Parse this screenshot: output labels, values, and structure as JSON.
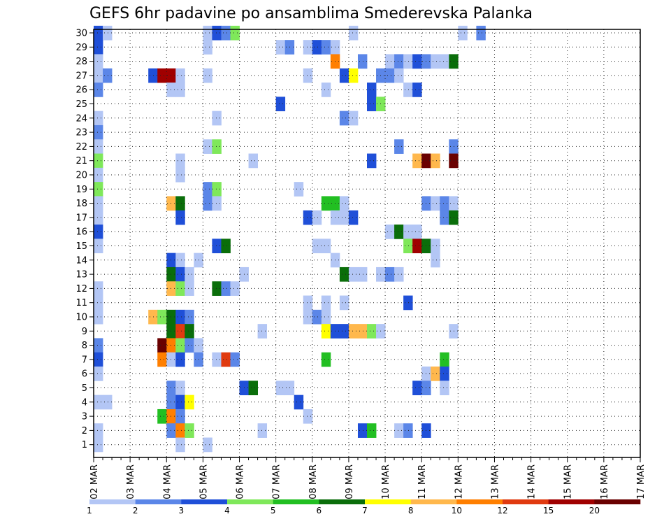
{
  "chart_data": {
    "type": "heatmap",
    "title": "GEFS 6hr padavine po ansamblima Smederevska Palanka",
    "xlabel": "",
    "ylabel": "",
    "x_tick_labels": [
      "02 MAR",
      "03 MAR",
      "04 MAR",
      "05 MAR",
      "06 MAR",
      "07 MAR",
      "08 MAR",
      "09 MAR",
      "10 MAR",
      "11 MAR",
      "12 MAR",
      "13 MAR",
      "14 MAR",
      "15 MAR",
      "16 MAR",
      "17 MAR"
    ],
    "x_step": "6hr",
    "y_tick_labels": [
      "1",
      "2",
      "3",
      "4",
      "5",
      "6",
      "7",
      "8",
      "9",
      "10",
      "11",
      "12",
      "13",
      "14",
      "15",
      "16",
      "17",
      "18",
      "19",
      "20",
      "21",
      "22",
      "23",
      "24",
      "25",
      "26",
      "27",
      "28",
      "29",
      "30"
    ],
    "ylim": [
      1,
      30
    ],
    "grid": true,
    "colorbar": {
      "labels": [
        "1",
        "2",
        "3",
        "4",
        "5",
        "6",
        "7",
        "8",
        "10",
        "12",
        "15",
        "20"
      ],
      "colors": [
        "#b3c6f5",
        "#5b86e8",
        "#1f4fd8",
        "#7fe85a",
        "#22bf22",
        "#0a6e0a",
        "#ffff00",
        "#ffb84d",
        "#ff7f00",
        "#e03a10",
        "#a00000",
        "#6a0000"
      ]
    },
    "cells": [
      [
        30,
        0,
        2
      ],
      [
        30,
        1,
        0
      ],
      [
        30,
        12,
        0
      ],
      [
        30,
        13,
        2
      ],
      [
        30,
        14,
        1
      ],
      [
        30,
        15,
        3
      ],
      [
        30,
        28,
        0
      ],
      [
        30,
        40,
        0
      ],
      [
        30,
        42,
        1
      ],
      [
        29,
        0,
        2
      ],
      [
        29,
        12,
        0
      ],
      [
        29,
        20,
        0
      ],
      [
        29,
        21,
        1
      ],
      [
        29,
        23,
        0
      ],
      [
        29,
        24,
        2
      ],
      [
        29,
        25,
        1
      ],
      [
        29,
        26,
        0
      ],
      [
        28,
        0,
        0
      ],
      [
        28,
        26,
        8
      ],
      [
        28,
        29,
        1
      ],
      [
        28,
        32,
        0
      ],
      [
        28,
        33,
        1
      ],
      [
        28,
        34,
        0
      ],
      [
        28,
        35,
        2
      ],
      [
        28,
        36,
        1
      ],
      [
        28,
        37,
        0
      ],
      [
        28,
        38,
        0
      ],
      [
        28,
        39,
        5
      ],
      [
        27,
        0,
        0
      ],
      [
        27,
        1,
        1
      ],
      [
        27,
        6,
        2
      ],
      [
        27,
        7,
        10
      ],
      [
        27,
        8,
        10
      ],
      [
        27,
        9,
        0
      ],
      [
        27,
        12,
        0
      ],
      [
        27,
        23,
        0
      ],
      [
        27,
        27,
        2
      ],
      [
        27,
        28,
        6
      ],
      [
        27,
        31,
        1
      ],
      [
        27,
        32,
        1
      ],
      [
        27,
        33,
        0
      ],
      [
        26,
        0,
        1
      ],
      [
        26,
        8,
        0
      ],
      [
        26,
        9,
        0
      ],
      [
        26,
        25,
        0
      ],
      [
        26,
        30,
        2
      ],
      [
        26,
        34,
        0
      ],
      [
        26,
        35,
        2
      ],
      [
        25,
        20,
        2
      ],
      [
        25,
        30,
        2
      ],
      [
        25,
        31,
        3
      ],
      [
        24,
        0,
        0
      ],
      [
        24,
        13,
        0
      ],
      [
        24,
        27,
        1
      ],
      [
        24,
        28,
        0
      ],
      [
        23,
        0,
        1
      ],
      [
        22,
        0,
        0
      ],
      [
        22,
        12,
        0
      ],
      [
        22,
        13,
        3
      ],
      [
        22,
        33,
        1
      ],
      [
        22,
        39,
        1
      ],
      [
        21,
        0,
        3
      ],
      [
        21,
        9,
        0
      ],
      [
        21,
        17,
        0
      ],
      [
        21,
        30,
        2
      ],
      [
        21,
        35,
        7
      ],
      [
        21,
        36,
        11
      ],
      [
        21,
        37,
        7
      ],
      [
        21,
        39,
        11
      ],
      [
        20,
        0,
        0
      ],
      [
        20,
        9,
        0
      ],
      [
        19,
        0,
        3
      ],
      [
        19,
        12,
        1
      ],
      [
        19,
        13,
        3
      ],
      [
        19,
        22,
        0
      ],
      [
        18,
        0,
        0
      ],
      [
        18,
        8,
        7
      ],
      [
        18,
        9,
        5
      ],
      [
        18,
        12,
        1
      ],
      [
        18,
        13,
        0
      ],
      [
        18,
        25,
        4
      ],
      [
        18,
        26,
        4
      ],
      [
        18,
        27,
        0
      ],
      [
        18,
        36,
        1
      ],
      [
        18,
        37,
        0
      ],
      [
        18,
        38,
        1
      ],
      [
        18,
        39,
        0
      ],
      [
        17,
        0,
        0
      ],
      [
        17,
        9,
        2
      ],
      [
        17,
        23,
        2
      ],
      [
        17,
        24,
        0
      ],
      [
        17,
        26,
        0
      ],
      [
        17,
        27,
        0
      ],
      [
        17,
        28,
        2
      ],
      [
        17,
        38,
        1
      ],
      [
        17,
        39,
        5
      ],
      [
        16,
        0,
        2
      ],
      [
        16,
        32,
        0
      ],
      [
        16,
        33,
        5
      ],
      [
        16,
        34,
        0
      ],
      [
        16,
        35,
        0
      ],
      [
        15,
        0,
        0
      ],
      [
        15,
        13,
        2
      ],
      [
        15,
        14,
        5
      ],
      [
        15,
        24,
        0
      ],
      [
        15,
        25,
        0
      ],
      [
        15,
        34,
        3
      ],
      [
        15,
        35,
        10
      ],
      [
        15,
        36,
        5
      ],
      [
        15,
        37,
        0
      ],
      [
        14,
        8,
        2
      ],
      [
        14,
        9,
        0
      ],
      [
        14,
        11,
        0
      ],
      [
        14,
        26,
        0
      ],
      [
        14,
        37,
        0
      ],
      [
        13,
        8,
        5
      ],
      [
        13,
        9,
        2
      ],
      [
        13,
        10,
        0
      ],
      [
        13,
        16,
        0
      ],
      [
        13,
        27,
        5
      ],
      [
        13,
        28,
        0
      ],
      [
        13,
        29,
        0
      ],
      [
        13,
        31,
        0
      ],
      [
        13,
        32,
        1
      ],
      [
        13,
        33,
        0
      ],
      [
        12,
        0,
        0
      ],
      [
        12,
        8,
        7
      ],
      [
        12,
        9,
        3
      ],
      [
        12,
        10,
        0
      ],
      [
        12,
        13,
        5
      ],
      [
        12,
        14,
        1
      ],
      [
        12,
        15,
        0
      ],
      [
        11,
        0,
        0
      ],
      [
        11,
        23,
        0
      ],
      [
        11,
        25,
        0
      ],
      [
        11,
        27,
        0
      ],
      [
        11,
        34,
        2
      ],
      [
        10,
        0,
        0
      ],
      [
        10,
        6,
        7
      ],
      [
        10,
        7,
        3
      ],
      [
        10,
        8,
        5
      ],
      [
        10,
        9,
        2
      ],
      [
        10,
        10,
        1
      ],
      [
        10,
        23,
        0
      ],
      [
        10,
        24,
        1
      ],
      [
        10,
        25,
        0
      ],
      [
        9,
        8,
        5
      ],
      [
        9,
        9,
        9
      ],
      [
        9,
        10,
        5
      ],
      [
        9,
        18,
        0
      ],
      [
        9,
        25,
        6
      ],
      [
        9,
        26,
        2
      ],
      [
        9,
        27,
        2
      ],
      [
        9,
        28,
        7
      ],
      [
        9,
        29,
        7
      ],
      [
        9,
        30,
        3
      ],
      [
        9,
        31,
        0
      ],
      [
        9,
        39,
        0
      ],
      [
        8,
        0,
        1
      ],
      [
        8,
        7,
        11
      ],
      [
        8,
        8,
        8
      ],
      [
        8,
        9,
        3
      ],
      [
        8,
        10,
        1
      ],
      [
        8,
        11,
        0
      ],
      [
        7,
        0,
        2
      ],
      [
        7,
        7,
        8
      ],
      [
        7,
        8,
        0
      ],
      [
        7,
        9,
        2
      ],
      [
        7,
        11,
        1
      ],
      [
        7,
        13,
        0
      ],
      [
        7,
        14,
        9
      ],
      [
        7,
        15,
        1
      ],
      [
        7,
        25,
        4
      ],
      [
        7,
        38,
        4
      ],
      [
        6,
        0,
        0
      ],
      [
        6,
        36,
        0
      ],
      [
        6,
        37,
        7
      ],
      [
        6,
        38,
        2
      ],
      [
        5,
        8,
        1
      ],
      [
        5,
        9,
        0
      ],
      [
        5,
        16,
        2
      ],
      [
        5,
        17,
        5
      ],
      [
        5,
        20,
        0
      ],
      [
        5,
        21,
        0
      ],
      [
        5,
        35,
        2
      ],
      [
        5,
        36,
        1
      ],
      [
        5,
        38,
        0
      ],
      [
        4,
        0,
        0
      ],
      [
        4,
        1,
        0
      ],
      [
        4,
        8,
        1
      ],
      [
        4,
        9,
        2
      ],
      [
        4,
        10,
        6
      ],
      [
        4,
        22,
        2
      ],
      [
        3,
        7,
        4
      ],
      [
        3,
        8,
        8
      ],
      [
        3,
        9,
        1
      ],
      [
        3,
        23,
        0
      ],
      [
        2,
        0,
        0
      ],
      [
        2,
        8,
        1
      ],
      [
        2,
        9,
        8
      ],
      [
        2,
        10,
        3
      ],
      [
        2,
        18,
        0
      ],
      [
        2,
        29,
        2
      ],
      [
        2,
        30,
        4
      ],
      [
        2,
        33,
        0
      ],
      [
        2,
        34,
        1
      ],
      [
        2,
        36,
        2
      ],
      [
        1,
        0,
        0
      ],
      [
        1,
        9,
        0
      ],
      [
        1,
        12,
        0
      ]
    ]
  }
}
